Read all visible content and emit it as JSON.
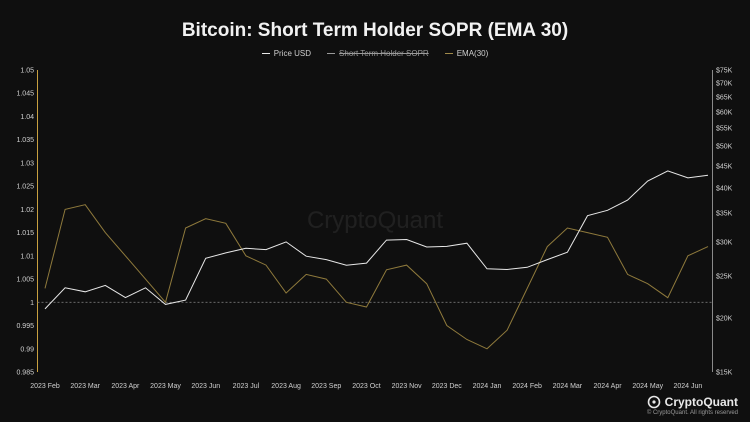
{
  "chart_data": {
    "type": "line",
    "title": "Bitcoin: Short Term Holder SOPR (EMA 30)",
    "watermark": "CryptoQuant",
    "brand": "CryptoQuant",
    "copyright": "© CryptoQuant. All rights reserved",
    "legend": [
      {
        "name": "Price USD",
        "color": "#e8e8e8",
        "strike": false
      },
      {
        "name": "Short Term Holder SOPR",
        "color": "#9a9a9a",
        "strike": true
      },
      {
        "name": "EMA(30)",
        "color": "#a08a4a",
        "strike": false
      }
    ],
    "colors": {
      "price": "#e8e8e8",
      "ema": "#8f7a3c",
      "axis_left": "#c8a040",
      "baseline": "#777777"
    },
    "x_ticks": [
      "2023 Feb",
      "2023 Mar",
      "2023 Apr",
      "2023 May",
      "2023 Jun",
      "2023 Jul",
      "2023 Aug",
      "2023 Sep",
      "2023 Oct",
      "2023 Nov",
      "2023 Dec",
      "2024 Jan",
      "2024 Feb",
      "2024 Mar",
      "2024 Apr",
      "2024 May",
      "2024 Jun"
    ],
    "y_left": {
      "ticks": [
        "0.985",
        "0.99",
        "0.995",
        "1",
        "1.005",
        "1.01",
        "1.015",
        "1.02",
        "1.025",
        "1.03",
        "1.035",
        "1.04",
        "1.045",
        "1.05"
      ],
      "min": 0.985,
      "max": 1.05,
      "baseline": 1.0
    },
    "y_right": {
      "ticks": [
        "$15K",
        "$20K",
        "$25K",
        "$30K",
        "$35K",
        "$40K",
        "$45K",
        "$50K",
        "$55K",
        "$60K",
        "$65K",
        "$70K",
        "$75K"
      ],
      "values": [
        15000,
        20000,
        25000,
        30000,
        35000,
        40000,
        45000,
        50000,
        55000,
        60000,
        65000,
        70000,
        75000
      ],
      "scale": "log"
    },
    "series": [
      {
        "name": "Price USD",
        "axis": "right",
        "x": [
          0,
          0.5,
          1,
          1.5,
          2,
          2.5,
          3,
          3.5,
          4,
          4.5,
          5,
          5.5,
          6,
          6.5,
          7,
          7.5,
          8,
          8.5,
          9,
          9.5,
          10,
          10.5,
          11,
          11.5,
          12,
          12.5,
          13,
          13.5,
          14,
          14.5,
          15,
          15.5,
          16,
          16.5
        ],
        "values": [
          21000,
          23500,
          23000,
          23800,
          22300,
          23500,
          21500,
          22000,
          27500,
          28300,
          29000,
          28800,
          30000,
          27800,
          27300,
          26500,
          26800,
          30300,
          30400,
          29200,
          29300,
          29800,
          26000,
          25900,
          26200,
          27300,
          28400,
          34500,
          35500,
          37500,
          41500,
          43800,
          42200,
          42800
        ]
      },
      {
        "name": "EMA(30)",
        "axis": "left",
        "x": [
          0,
          0.5,
          1,
          1.5,
          2,
          2.5,
          3,
          3.5,
          4,
          4.5,
          5,
          5.5,
          6,
          6.5,
          7,
          7.5,
          8,
          8.5,
          9,
          9.5,
          10,
          10.5,
          11,
          11.5,
          12,
          12.5,
          13,
          13.5,
          14,
          14.5,
          15,
          15.5,
          16,
          16.5
        ],
        "values": [
          1.003,
          1.02,
          1.021,
          1.015,
          1.01,
          1.005,
          1.0,
          1.016,
          1.018,
          1.017,
          1.01,
          1.008,
          1.002,
          1.006,
          1.005,
          1.0,
          0.999,
          1.007,
          1.008,
          1.004,
          0.995,
          0.992,
          0.99,
          0.994,
          1.003,
          1.012,
          1.016,
          1.015,
          1.014,
          1.006,
          1.004,
          1.001,
          1.01,
          1.012
        ]
      }
    ]
  }
}
